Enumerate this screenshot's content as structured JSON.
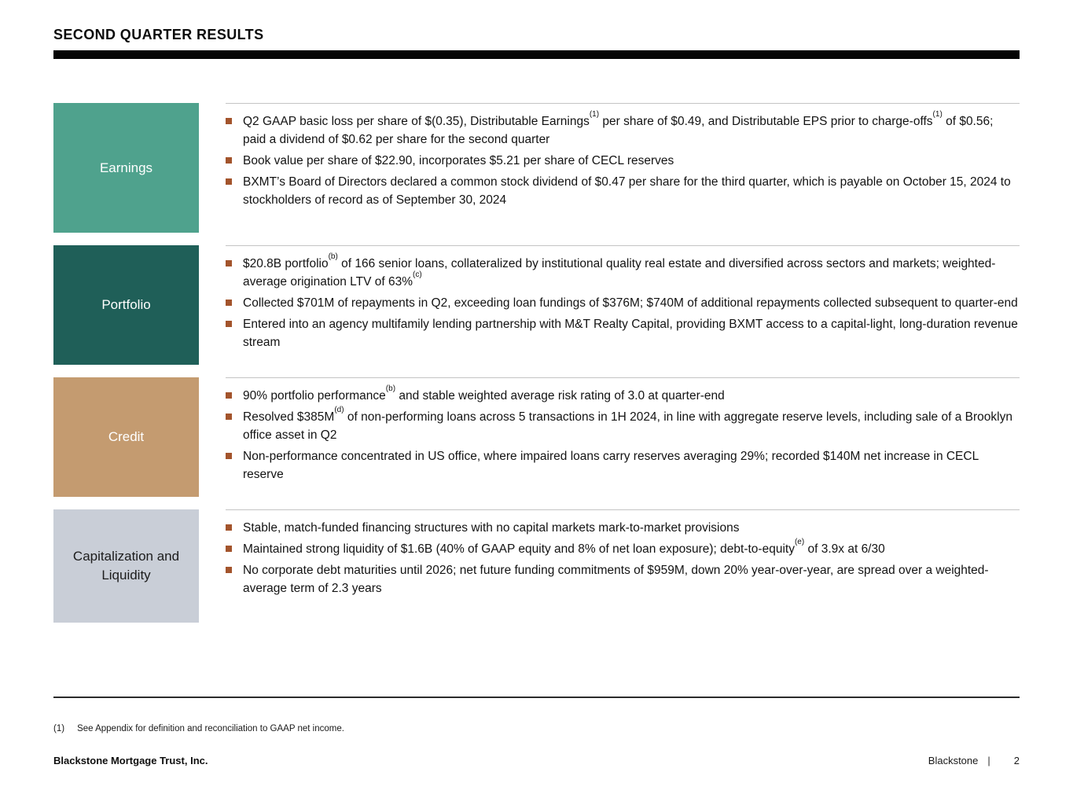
{
  "title": "SECOND QUARTER RESULTS",
  "colors": {
    "title_bar": "#050505",
    "bullet_marker": "#a3542c",
    "separator_line": "#c4c4c4"
  },
  "sections": [
    {
      "label": "Earnings",
      "box_color": "#4fa28d",
      "label_color": "#ffffff",
      "bullets": [
        {
          "segments": [
            {
              "t": "Q2 GAAP basic loss per share of $(0.35), Distributable Earnings"
            },
            {
              "sup": "(1)"
            },
            {
              "t": " per share of $0.49, and Distributable EPS prior to charge-offs"
            },
            {
              "sup": "(1)"
            },
            {
              "t": " of $0.56; paid a dividend of $0.62 per share for the second quarter"
            }
          ]
        },
        {
          "segments": [
            {
              "t": "Book value per share of $22.90, incorporates $5.21 per share of CECL reserves"
            }
          ]
        },
        {
          "segments": [
            {
              "t": "BXMT’s Board of Directors declared a common stock dividend of $0.47 per share for the third quarter, which is payable on October 15, 2024 to stockholders of record as of September 30, 2024"
            }
          ]
        }
      ],
      "min_height": 165
    },
    {
      "label": "Portfolio",
      "box_color": "#1f5f58",
      "label_color": "#ffffff",
      "bullets": [
        {
          "segments": [
            {
              "t": "$20.8B portfolio"
            },
            {
              "sup": "(b)"
            },
            {
              "t": " of 166 senior loans, collateralized by institutional quality real estate and diversified across sectors and markets; weighted-average origination LTV of 63%"
            },
            {
              "sup": "(c)"
            }
          ]
        },
        {
          "segments": [
            {
              "t": "Collected $701M of repayments in Q2, exceeding loan fundings of $376M; $740M of additional repayments collected subsequent to quarter-end"
            }
          ]
        },
        {
          "segments": [
            {
              "t": "Entered into an agency multifamily lending partnership with M&T Realty Capital, providing BXMT access to a capital-light, long-duration revenue stream"
            }
          ]
        }
      ],
      "min_height": 152
    },
    {
      "label": "Credit",
      "box_color": "#c49b70",
      "label_color": "#ffffff",
      "bullets": [
        {
          "segments": [
            {
              "t": "90% portfolio performance"
            },
            {
              "sup": "(b)"
            },
            {
              "t": " and stable weighted average risk rating of 3.0 at quarter-end"
            }
          ]
        },
        {
          "segments": [
            {
              "t": "Resolved $385M"
            },
            {
              "sup": "(d)"
            },
            {
              "t": " of non-performing loans across 5 transactions in 1H 2024, in line with aggregate reserve levels, including sale of a Brooklyn office asset in Q2"
            }
          ]
        },
        {
          "segments": [
            {
              "t": "Non-performance concentrated in US office, where impaired loans carry reserves averaging 29%; recorded $140M net increase in CECL reserve"
            }
          ]
        }
      ],
      "min_height": 152
    },
    {
      "label": "Capitalization and Liquidity",
      "box_color": "#c9ced7",
      "label_color": "#1c1c1c",
      "bullets": [
        {
          "segments": [
            {
              "t": "Stable, match-funded financing structures with no capital markets mark-to-market provisions"
            }
          ]
        },
        {
          "segments": [
            {
              "t": "Maintained strong liquidity of $1.6B (40% of GAAP equity and 8% of net loan exposure); debt-to-equity"
            },
            {
              "sup": "(e)"
            },
            {
              "t": " of 3.9x at 6/30"
            }
          ]
        },
        {
          "segments": [
            {
              "t": "No corporate debt maturities until 2026; net future funding commitments of $959M, down 20% year-over-year, are spread over a weighted-average term of 2.3 years"
            }
          ]
        }
      ],
      "min_height": 144
    }
  ],
  "footnote": {
    "marker": "(1)",
    "text": "See Appendix for definition and reconciliation to GAAP net income."
  },
  "footer": {
    "left": "Blackstone Mortgage Trust, Inc.",
    "brand": "Blackstone",
    "separator": "|",
    "page": "2"
  }
}
